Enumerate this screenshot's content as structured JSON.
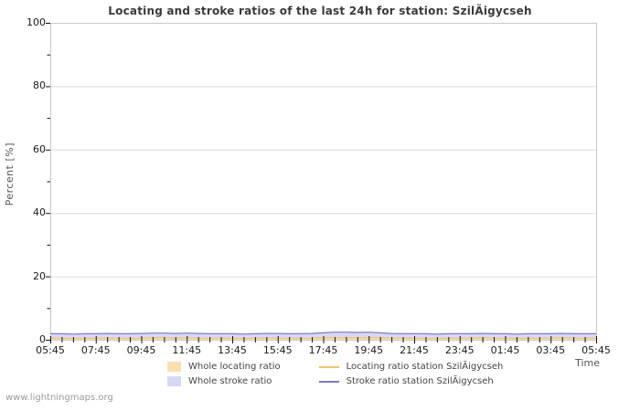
{
  "title": "Locating and stroke ratios of the last 24h for station: SzilÃigycseh",
  "watermark": "www.lightningmaps.org",
  "axes": {
    "y_label": "Percent  [%]",
    "x_label": "Time",
    "y_ticks": [
      0,
      20,
      40,
      60,
      80,
      100
    ],
    "y_minor_ticks": [
      10,
      30,
      50,
      70,
      90
    ],
    "x_tick_labels": [
      "05:45",
      "07:45",
      "09:45",
      "11:45",
      "13:45",
      "15:45",
      "17:45",
      "19:45",
      "21:45",
      "23:45",
      "01:45",
      "03:45",
      "05:45"
    ],
    "ylim": [
      0,
      100
    ]
  },
  "legend": [
    {
      "label": "Whole locating ratio",
      "type": "area",
      "color": "#f9e0ae"
    },
    {
      "label": "Whole stroke ratio",
      "type": "area",
      "color": "#d8d8f4"
    },
    {
      "label": "Locating ratio station SzilÃigycseh",
      "type": "line",
      "color": "#f0c46d"
    },
    {
      "label": "Stroke ratio station SzilÃigycseh",
      "type": "line",
      "color": "#7a7ace"
    }
  ],
  "colors": {
    "plot_border": "#c8c8c8",
    "gridline": "#dcdcdc",
    "tick": "#111111",
    "whole_locating_fill": "#f9e0ae",
    "whole_stroke_fill": "#d8d8f4",
    "station_locating_line": "#f0c46d",
    "station_stroke_line": "#7a7ace"
  },
  "chart_data": {
    "type": "area",
    "title": "Locating and stroke ratios of the last 24h for station: SzilÃigycseh",
    "xlabel": "Time",
    "ylabel": "Percent  [%]",
    "ylim": [
      0,
      100
    ],
    "grid": "horizontal-major-only",
    "legend_position": "bottom",
    "x": [
      "05:45",
      "06:15",
      "06:45",
      "07:15",
      "07:45",
      "08:15",
      "08:45",
      "09:15",
      "09:45",
      "10:15",
      "10:45",
      "11:15",
      "11:45",
      "12:15",
      "12:45",
      "13:15",
      "13:45",
      "14:15",
      "14:45",
      "15:15",
      "15:45",
      "16:15",
      "16:45",
      "17:15",
      "17:45",
      "18:15",
      "18:45",
      "19:15",
      "19:45",
      "20:15",
      "20:45",
      "21:15",
      "21:45",
      "22:15",
      "22:45",
      "23:15",
      "23:45",
      "00:15",
      "00:45",
      "01:15",
      "01:45",
      "02:15",
      "02:45",
      "03:15",
      "03:45",
      "04:15",
      "04:45",
      "05:15",
      "05:45"
    ],
    "series": [
      {
        "name": "Whole locating ratio",
        "type": "area",
        "color": "#f9e0ae",
        "values": [
          0.5,
          0.5,
          0.4,
          0.5,
          0.5,
          0.5,
          0.5,
          0.4,
          0.5,
          0.6,
          0.6,
          0.5,
          0.6,
          0.5,
          0.5,
          0.5,
          0.5,
          0.4,
          0.5,
          0.5,
          0.5,
          0.5,
          0.4,
          0.5,
          0.6,
          0.7,
          0.6,
          0.6,
          0.7,
          0.6,
          0.5,
          0.5,
          0.5,
          0.5,
          0.4,
          0.5,
          0.5,
          0.5,
          0.6,
          0.5,
          0.5,
          0.4,
          0.5,
          0.5,
          0.5,
          0.6,
          0.5,
          0.5,
          0.5
        ]
      },
      {
        "name": "Whole stroke ratio",
        "type": "area",
        "color": "#d8d8f4",
        "values": [
          1.9,
          1.9,
          1.8,
          1.9,
          1.9,
          2.0,
          1.9,
          1.9,
          2.0,
          2.1,
          2.1,
          2.0,
          2.1,
          2.0,
          1.9,
          1.9,
          1.9,
          1.8,
          1.9,
          2.0,
          2.0,
          1.9,
          1.9,
          2.0,
          2.2,
          2.4,
          2.4,
          2.3,
          2.4,
          2.2,
          2.0,
          1.9,
          1.9,
          1.9,
          1.8,
          1.9,
          1.9,
          1.9,
          2.0,
          1.9,
          1.9,
          1.8,
          1.9,
          1.9,
          1.9,
          2.0,
          1.9,
          1.9,
          1.9
        ]
      },
      {
        "name": "Locating ratio station SzilÃigycseh",
        "type": "line",
        "color": "#f0c46d",
        "values": [
          0.5,
          0.5,
          0.4,
          0.5,
          0.5,
          0.5,
          0.5,
          0.4,
          0.5,
          0.6,
          0.6,
          0.5,
          0.6,
          0.5,
          0.5,
          0.5,
          0.5,
          0.4,
          0.5,
          0.5,
          0.5,
          0.5,
          0.4,
          0.5,
          0.6,
          0.7,
          0.6,
          0.6,
          0.7,
          0.6,
          0.5,
          0.5,
          0.5,
          0.5,
          0.4,
          0.5,
          0.5,
          0.5,
          0.6,
          0.5,
          0.5,
          0.4,
          0.5,
          0.5,
          0.5,
          0.6,
          0.5,
          0.5,
          0.5
        ]
      },
      {
        "name": "Stroke ratio station SzilÃigycseh",
        "type": "line",
        "color": "#7a7ace",
        "values": [
          1.9,
          1.9,
          1.8,
          1.9,
          1.9,
          2.0,
          1.9,
          1.9,
          2.0,
          2.1,
          2.1,
          2.0,
          2.1,
          2.0,
          1.9,
          1.9,
          1.9,
          1.8,
          1.9,
          2.0,
          2.0,
          1.9,
          1.9,
          2.0,
          2.2,
          2.4,
          2.4,
          2.3,
          2.4,
          2.2,
          2.0,
          1.9,
          1.9,
          1.9,
          1.8,
          1.9,
          1.9,
          1.9,
          2.0,
          1.9,
          1.9,
          1.8,
          1.9,
          1.9,
          1.9,
          2.0,
          1.9,
          1.9,
          1.9
        ]
      }
    ]
  }
}
